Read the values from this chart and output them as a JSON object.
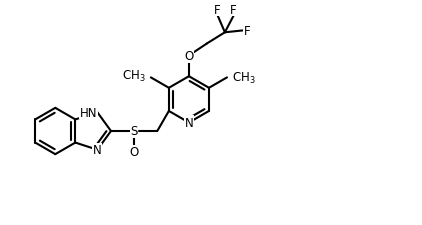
{
  "background_color": "#ffffff",
  "line_color": "#000000",
  "line_width": 1.5,
  "font_size": 8.5,
  "figsize": [
    4.22,
    2.26
  ],
  "dpi": 100,
  "xlim": [
    0,
    10.5
  ],
  "ylim": [
    0,
    5.5
  ]
}
